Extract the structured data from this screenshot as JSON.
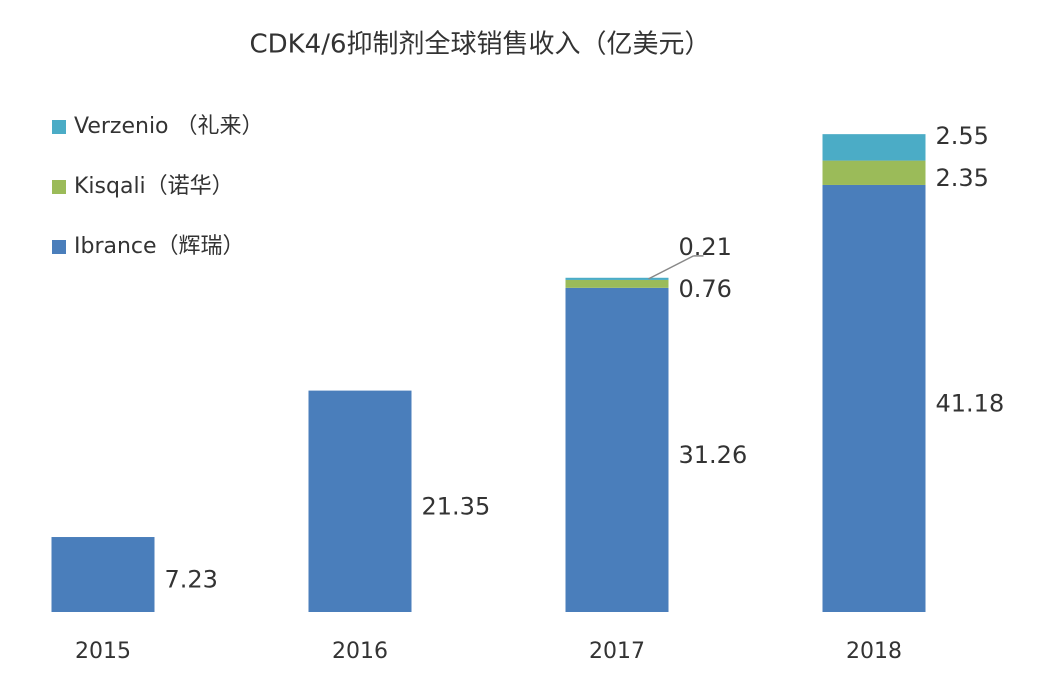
{
  "chart_data": {
    "type": "stacked-bar",
    "title": "CDK4/6抑制剂全球销售收入（亿美元）",
    "categories": [
      "2015",
      "2016",
      "2017",
      "2018"
    ],
    "series": [
      {
        "name": "Ibrance（辉瑞）",
        "color": "#4a7ebb",
        "values": [
          7.23,
          21.35,
          31.26,
          41.18
        ]
      },
      {
        "name": "Kisqali（诺华）",
        "color": "#9bbb59",
        "values": [
          null,
          null,
          0.76,
          2.35
        ]
      },
      {
        "name": "Verzenio （礼来）",
        "color": "#4bacc6",
        "values": [
          null,
          null,
          0.21,
          2.55
        ]
      }
    ],
    "legend": "top-left"
  }
}
